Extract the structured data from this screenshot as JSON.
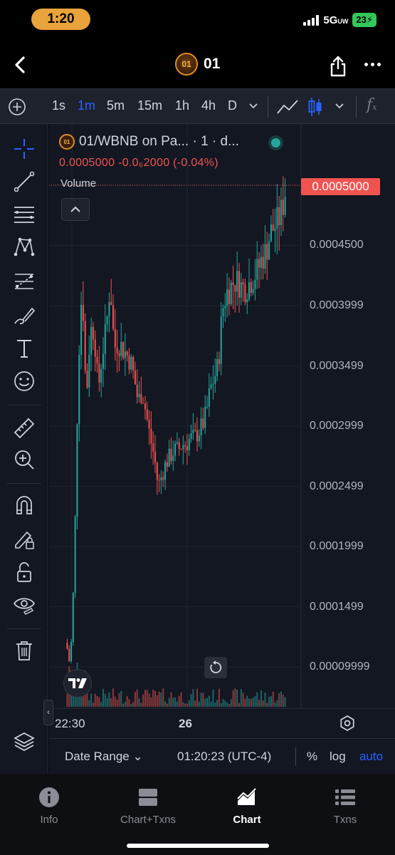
{
  "status_bar": {
    "time": "1:20",
    "network": "5G",
    "network_sup": "UW",
    "battery": "23"
  },
  "header": {
    "token_logo_text": "01",
    "token_name": "01"
  },
  "toolbar": {
    "timeframes": [
      "1s",
      "1m",
      "5m",
      "15m",
      "1h",
      "4h",
      "D"
    ],
    "active_timeframe": "1m",
    "fx_label": "f",
    "fx_sub": "x"
  },
  "chart": {
    "logo_text": "01",
    "legend_title": "01/WBNB on Pa... · 1 · d...",
    "legend_values": "0.0005000  -0.0₆2000 (-0.04%)",
    "volume_label": "Volume",
    "current_price": "0.0005000",
    "reset_icon": "reset-icon",
    "tv_logo_text": "TV",
    "edge_tab_label": "‹",
    "x_labels": [
      {
        "text": "22:30",
        "bold": false
      },
      {
        "text": "26",
        "bold": true
      }
    ],
    "bottom": {
      "date_range": "Date Range ⌄",
      "time_zone": "01:20:23 (UTC-4)",
      "percent": "%",
      "log": "log",
      "auto": "auto"
    }
  },
  "colors": {
    "up": "#26a69a",
    "down": "#ef5350",
    "accent": "#2962ff",
    "background": "#131722",
    "toolbar": "#1e222d"
  },
  "chart_data": {
    "type": "candlestick",
    "title": "01/WBNB",
    "timeframe": "1m",
    "y_ticks": [
      "0.0005000",
      "0.0004500",
      "0.0003999",
      "0.0003499",
      "0.0002999",
      "0.0002499",
      "0.0001999",
      "0.0001499",
      "0.00009999"
    ],
    "y_tick_values": [
      0.0005,
      0.00045,
      0.0003999,
      0.0003499,
      0.0002999,
      0.0002499,
      0.0001999,
      0.0001499,
      9.999e-05
    ],
    "ylim": [
      6e-05,
      0.00052
    ],
    "x_ticks": [
      "22:30",
      "26"
    ],
    "last_price": 0.0005,
    "approx_close_path": [
      [
        0,
        0.00012
      ],
      [
        2,
        0.0001
      ],
      [
        4,
        0.00018
      ],
      [
        6,
        0.00035
      ],
      [
        8,
        0.00042
      ],
      [
        10,
        0.00032
      ],
      [
        12,
        0.00038
      ],
      [
        14,
        0.00038
      ],
      [
        16,
        0.00033
      ],
      [
        18,
        0.00036
      ],
      [
        20,
        0.00038
      ],
      [
        22,
        0.00042
      ],
      [
        24,
        0.000365
      ],
      [
        26,
        0.00037
      ],
      [
        28,
        0.000365
      ],
      [
        30,
        0.00036
      ],
      [
        32,
        0.000355
      ],
      [
        34,
        0.00034
      ],
      [
        36,
        0.00032
      ],
      [
        38,
        0.00033
      ],
      [
        40,
        0.00031
      ],
      [
        42,
        0.00029
      ],
      [
        44,
        0.000275
      ],
      [
        46,
        0.00025
      ],
      [
        48,
        0.00026
      ],
      [
        50,
        0.00027
      ],
      [
        52,
        0.000275
      ],
      [
        54,
        0.00028
      ],
      [
        56,
        0.00028
      ],
      [
        58,
        0.000285
      ],
      [
        60,
        0.000285
      ],
      [
        62,
        0.00029
      ],
      [
        64,
        0.00029
      ],
      [
        66,
        0.000295
      ],
      [
        68,
        0.0003
      ],
      [
        70,
        0.00031
      ],
      [
        72,
        0.00033
      ],
      [
        74,
        0.00034
      ],
      [
        76,
        0.00035
      ],
      [
        78,
        0.000395
      ],
      [
        80,
        0.00041
      ],
      [
        82,
        0.000415
      ],
      [
        84,
        0.00042
      ],
      [
        86,
        0.00042
      ],
      [
        88,
        0.000415
      ],
      [
        90,
        0.000415
      ],
      [
        92,
        0.00042
      ],
      [
        94,
        0.000425
      ],
      [
        96,
        0.00043
      ],
      [
        98,
        0.00044
      ],
      [
        100,
        0.000445
      ],
      [
        102,
        0.00046
      ],
      [
        104,
        0.000465
      ],
      [
        106,
        0.00047
      ],
      [
        108,
        0.00048
      ],
      [
        110,
        0.0005
      ]
    ]
  },
  "tabs": [
    {
      "label": "Info",
      "icon": "info-icon",
      "active": false
    },
    {
      "label": "Chart+Txns",
      "icon": "chart-txns-icon",
      "active": false
    },
    {
      "label": "Chart",
      "icon": "chart-icon",
      "active": true
    },
    {
      "label": "Txns",
      "icon": "txns-list-icon",
      "active": false
    }
  ]
}
